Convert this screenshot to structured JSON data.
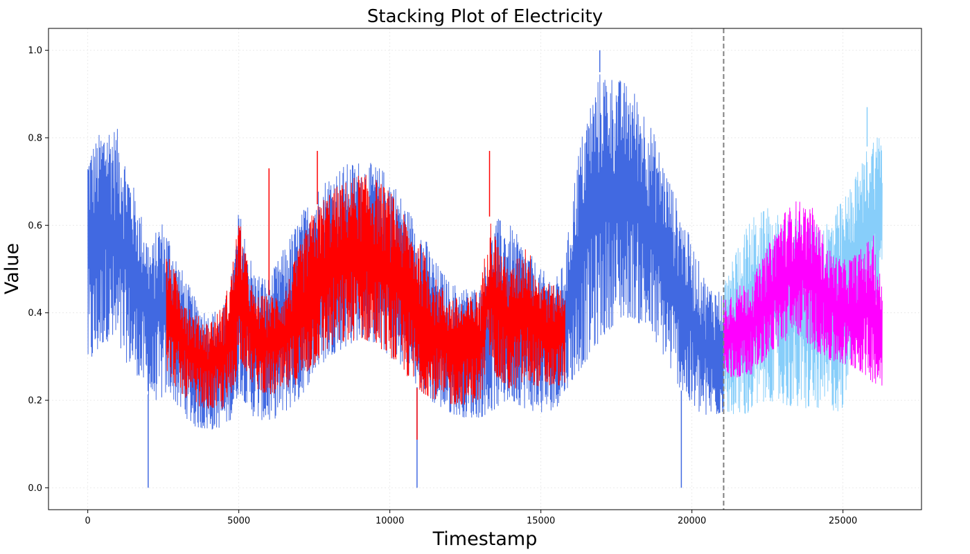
{
  "chart_data": {
    "type": "line",
    "title": "Stacking Plot of Electricity",
    "xlabel": "Timestamp",
    "ylabel": "Value",
    "xlim": [
      -1300,
      27600
    ],
    "ylim": [
      -0.05,
      1.05
    ],
    "xticks": [
      0,
      5000,
      10000,
      15000,
      20000,
      25000
    ],
    "xtick_labels": [
      "0",
      "5000",
      "10000",
      "15000",
      "20000",
      "25000"
    ],
    "yticks": [
      0.0,
      0.2,
      0.4,
      0.6,
      0.8,
      1.0
    ],
    "ytick_labels": [
      "0.0",
      "0.2",
      "0.4",
      "0.6",
      "0.8",
      "1.0"
    ],
    "grid": true,
    "split_line": {
      "x": 21050,
      "color": "#7f7f7f",
      "style": "dashed"
    },
    "series": [
      {
        "color": "#4169e1",
        "x_range": [
          0,
          21050
        ],
        "envelope": {
          "x": [
            0,
            300,
            600,
            1000,
            1400,
            1800,
            2100,
            2400,
            2700,
            3000,
            3500,
            4000,
            4500,
            4800,
            5000,
            5500,
            6000,
            6500,
            7000,
            7500,
            8000,
            8500,
            9000,
            9500,
            10000,
            10500,
            11000,
            11500,
            12000,
            12500,
            13000,
            13500,
            14000,
            14500,
            15000,
            15500,
            15800,
            16200,
            16600,
            17000,
            17500,
            18000,
            18500,
            19000,
            19500,
            20000,
            20500,
            21050
          ],
          "low": [
            0.27,
            0.3,
            0.34,
            0.3,
            0.28,
            0.24,
            0.2,
            0.2,
            0.22,
            0.18,
            0.14,
            0.13,
            0.14,
            0.16,
            0.22,
            0.16,
            0.15,
            0.17,
            0.2,
            0.26,
            0.3,
            0.32,
            0.34,
            0.33,
            0.3,
            0.27,
            0.22,
            0.19,
            0.17,
            0.16,
            0.16,
            0.18,
            0.2,
            0.18,
            0.17,
            0.18,
            0.22,
            0.26,
            0.3,
            0.34,
            0.38,
            0.39,
            0.36,
            0.31,
            0.24,
            0.18,
            0.16,
            0.17
          ],
          "high": [
            0.78,
            0.8,
            0.84,
            0.82,
            0.72,
            0.62,
            0.55,
            0.62,
            0.58,
            0.52,
            0.44,
            0.4,
            0.42,
            0.5,
            0.64,
            0.5,
            0.48,
            0.55,
            0.62,
            0.68,
            0.72,
            0.74,
            0.75,
            0.74,
            0.72,
            0.65,
            0.6,
            0.52,
            0.47,
            0.46,
            0.46,
            0.62,
            0.6,
            0.55,
            0.5,
            0.48,
            0.52,
            0.76,
            0.88,
            0.96,
            0.94,
            0.92,
            0.86,
            0.76,
            0.66,
            0.56,
            0.47,
            0.45
          ]
        },
        "spikes": [
          {
            "x": 2000,
            "y": 0.0
          },
          {
            "x": 10900,
            "y": 0.0
          },
          {
            "x": 19650,
            "y": 0.0
          },
          {
            "x": 16950,
            "y": 1.0
          }
        ]
      },
      {
        "color": "#ff0000",
        "x_range": [
          2600,
          15800
        ],
        "envelope": {
          "x": [
            2600,
            3000,
            3500,
            4000,
            4500,
            4800,
            5000,
            5500,
            6000,
            6500,
            7000,
            7500,
            8000,
            8500,
            9000,
            9500,
            10000,
            10500,
            11000,
            11500,
            12000,
            12500,
            13000,
            13300,
            13600,
            14000,
            14500,
            15000,
            15500,
            15800
          ],
          "low": [
            0.27,
            0.22,
            0.19,
            0.18,
            0.18,
            0.2,
            0.3,
            0.23,
            0.21,
            0.22,
            0.24,
            0.28,
            0.32,
            0.33,
            0.34,
            0.33,
            0.3,
            0.26,
            0.22,
            0.2,
            0.19,
            0.19,
            0.2,
            0.3,
            0.24,
            0.22,
            0.24,
            0.23,
            0.23,
            0.24
          ],
          "high": [
            0.54,
            0.48,
            0.4,
            0.38,
            0.42,
            0.52,
            0.62,
            0.44,
            0.44,
            0.45,
            0.55,
            0.64,
            0.68,
            0.7,
            0.72,
            0.71,
            0.68,
            0.62,
            0.56,
            0.48,
            0.44,
            0.43,
            0.46,
            0.62,
            0.56,
            0.5,
            0.56,
            0.48,
            0.46,
            0.47
          ]
        },
        "spikes": [
          {
            "x": 6000,
            "y": 0.73
          },
          {
            "x": 7600,
            "y": 0.77
          },
          {
            "x": 10900,
            "y": 0.11
          },
          {
            "x": 13300,
            "y": 0.77
          }
        ]
      },
      {
        "color": "#87cefa",
        "x_range": [
          21050,
          26300
        ],
        "envelope": {
          "x": [
            21050,
            21500,
            22000,
            22500,
            23000,
            23500,
            24000,
            24500,
            25000,
            25300,
            25600,
            25900,
            26300
          ],
          "low": [
            0.18,
            0.16,
            0.17,
            0.2,
            0.19,
            0.18,
            0.18,
            0.18,
            0.17,
            0.32,
            0.36,
            0.4,
            0.45
          ],
          "high": [
            0.46,
            0.56,
            0.62,
            0.64,
            0.62,
            0.62,
            0.6,
            0.62,
            0.66,
            0.7,
            0.74,
            0.8,
            0.82
          ]
        },
        "spikes": [
          {
            "x": 25800,
            "y": 0.87
          }
        ]
      },
      {
        "color": "#ff00ff",
        "x_range": [
          21050,
          26300
        ],
        "envelope": {
          "x": [
            21050,
            21500,
            22000,
            22500,
            23000,
            23500,
            24000,
            24500,
            25000,
            25500,
            26000,
            26300
          ],
          "low": [
            0.24,
            0.25,
            0.26,
            0.3,
            0.33,
            0.35,
            0.32,
            0.29,
            0.28,
            0.27,
            0.24,
            0.23
          ],
          "high": [
            0.44,
            0.46,
            0.48,
            0.55,
            0.63,
            0.66,
            0.64,
            0.55,
            0.52,
            0.54,
            0.58,
            0.46
          ]
        },
        "spikes": []
      }
    ]
  }
}
